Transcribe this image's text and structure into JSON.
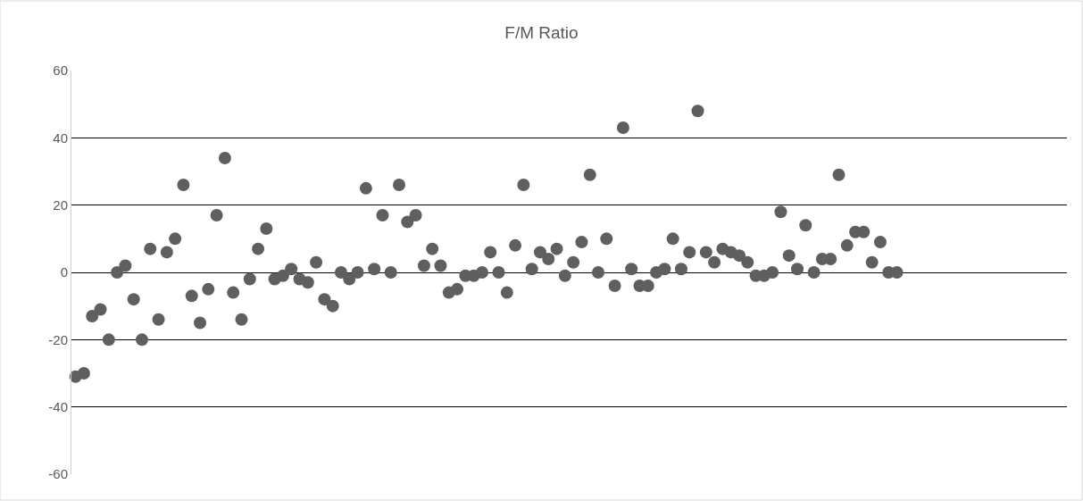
{
  "chart_data": {
    "type": "scatter",
    "title": "F/M Ratio",
    "categories": [
      null,
      null,
      null,
      null,
      null,
      null,
      null,
      null,
      null,
      null,
      null,
      null,
      null,
      null,
      null,
      null,
      null,
      null,
      null,
      null,
      null,
      null,
      null,
      null,
      null,
      null,
      null,
      null,
      null,
      null,
      null,
      null,
      null,
      null,
      null,
      null,
      null,
      null,
      null,
      null,
      null,
      null,
      null,
      null,
      null,
      null,
      null,
      null,
      null,
      null,
      null,
      null,
      null,
      null,
      null,
      null,
      null,
      null,
      null,
      null,
      null,
      null,
      null,
      null,
      null,
      null,
      null,
      null,
      null,
      null,
      null,
      null,
      null,
      null,
      null,
      null,
      null,
      null,
      null,
      null,
      null,
      null,
      null,
      null,
      null,
      null,
      null,
      null,
      null,
      null,
      null,
      null,
      null,
      null,
      null,
      null,
      null,
      null,
      null,
      null,
      null,
      null,
      null,
      null,
      null,
      null,
      null,
      null,
      null,
      null,
      null,
      null,
      null,
      null,
      null,
      null,
      null,
      null,
      null,
      null
    ],
    "series": [
      {
        "color": "#5f5f5f",
        "values": [
          -31,
          -30,
          -13,
          -11,
          -20,
          0,
          2,
          -8,
          -20,
          7,
          -14,
          6,
          10,
          26,
          -7,
          -15,
          -5,
          17,
          34,
          -6,
          -14,
          -2,
          7,
          13,
          -2,
          -1,
          1,
          -2,
          -3,
          3,
          -8,
          -10,
          0,
          -2,
          0,
          25,
          1,
          17,
          0,
          26,
          15,
          17,
          2,
          7,
          2,
          -6,
          -5,
          -1,
          -1,
          0,
          6,
          0,
          -6,
          8,
          26,
          1,
          6,
          4,
          7,
          -1,
          3,
          9,
          29,
          0,
          10,
          -4,
          43,
          1,
          -4,
          -4,
          0,
          1,
          10,
          1,
          6,
          48,
          6,
          3,
          7,
          6,
          5,
          3,
          -1,
          -1,
          0,
          18,
          5,
          1,
          14,
          0,
          4,
          4,
          29,
          8,
          12,
          12,
          3,
          9,
          0,
          0,
          null,
          null,
          null,
          null,
          null,
          null,
          null,
          null,
          null,
          null,
          null,
          null,
          null,
          null,
          null,
          null,
          null,
          null,
          null,
          null
        ]
      }
    ],
    "ylim": [
      -60,
      60
    ],
    "yticks": [
      -60,
      -40,
      -20,
      0,
      20,
      40,
      60
    ],
    "grid": "y",
    "marker": "circle",
    "tick_labels": "y"
  }
}
